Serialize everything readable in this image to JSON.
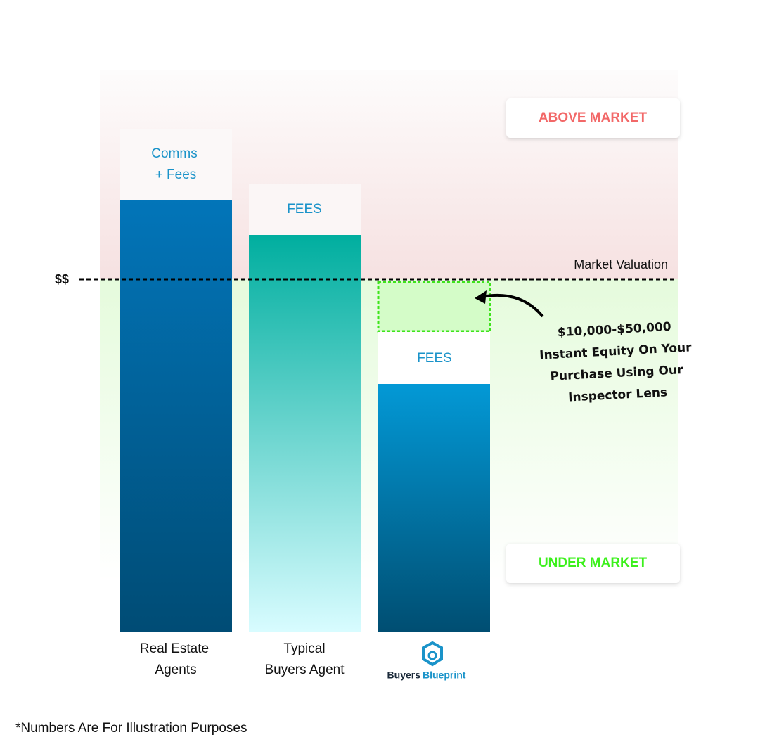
{
  "zones": {
    "above": "ABOVE MARKET",
    "under": "UNDER MARKET"
  },
  "market_line": {
    "symbol": "$$",
    "label": "Market Valuation"
  },
  "bars": [
    {
      "cap": [
        "Comms",
        "+ Fees"
      ],
      "label": [
        "Real Estate",
        "Agents"
      ]
    },
    {
      "cap": [
        "FEES"
      ],
      "label": [
        "Typical",
        "Buyers Agent"
      ]
    },
    {
      "cap": [
        "FEES"
      ],
      "logo": [
        "Buyers",
        "Blueprint"
      ]
    }
  ],
  "annotation": [
    "$10,000-$50,000",
    "Instant Equity On Your",
    "Purchase Using Our",
    "Inspector Lens"
  ],
  "footnote": "*Numbers Are For Illustration Purposes"
}
